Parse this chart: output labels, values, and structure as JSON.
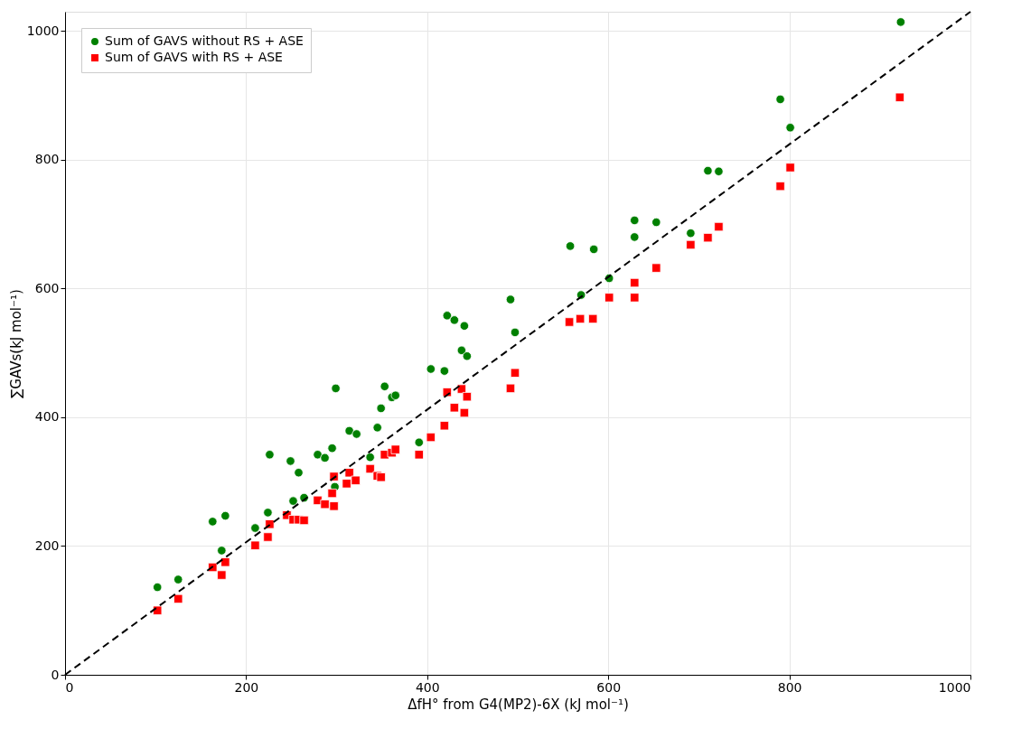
{
  "chart_data": {
    "type": "scatter",
    "xlabel": "ΔfH° from G4(MP2)-6X (kJ mol⁻¹)",
    "ylabel": "∑GAVs(kJ mol⁻¹)",
    "xlim": [
      0,
      1000
    ],
    "ylim": [
      0,
      1030
    ],
    "xticks": [
      0,
      200,
      400,
      600,
      800,
      1000
    ],
    "yticks": [
      0,
      200,
      400,
      600,
      800,
      1000
    ],
    "grid": true,
    "legend": "top left",
    "series": [
      {
        "name": "Sum of GAVS without RS + ASE",
        "color": "#008000",
        "marker": "circle",
        "x": [
          102,
          125,
          163,
          177,
          173,
          210,
          224,
          226,
          249,
          258,
          252,
          264,
          279,
          287,
          295,
          299,
          298,
          314,
          322,
          337,
          345,
          349,
          353,
          361,
          365,
          391,
          404,
          419,
          422,
          430,
          441,
          438,
          444,
          492,
          497,
          558,
          570,
          584,
          601,
          629,
          629,
          653,
          691,
          710,
          722,
          790,
          801,
          923
        ],
        "values": [
          136,
          148,
          238,
          247,
          193,
          228,
          252,
          342,
          332,
          314,
          270,
          275,
          342,
          337,
          352,
          445,
          292,
          379,
          374,
          338,
          384,
          414,
          448,
          431,
          434,
          361,
          475,
          472,
          558,
          551,
          542,
          504,
          495,
          583,
          532,
          666,
          590,
          661,
          616,
          706,
          680,
          703,
          686,
          783,
          782,
          894,
          850,
          1014
        ]
      },
      {
        "name": "Sum of GAVS with RS + ASE",
        "color": "#ff0000",
        "marker": "square",
        "x": [
          102,
          125,
          163,
          173,
          177,
          210,
          224,
          226,
          245,
          252,
          258,
          264,
          279,
          287,
          295,
          297,
          297,
          311,
          314,
          321,
          337,
          345,
          349,
          353,
          361,
          365,
          391,
          404,
          419,
          422,
          430,
          438,
          441,
          444,
          492,
          497,
          557,
          569,
          583,
          601,
          629,
          629,
          653,
          691,
          710,
          722,
          790,
          801,
          922
        ],
        "values": [
          100,
          118,
          167,
          155,
          175,
          201,
          214,
          234,
          248,
          241,
          241,
          240,
          271,
          265,
          282,
          262,
          308,
          297,
          314,
          302,
          320,
          309,
          307,
          342,
          345,
          350,
          342,
          369,
          387,
          439,
          415,
          444,
          407,
          432,
          445,
          469,
          548,
          553,
          553,
          586,
          609,
          586,
          632,
          668,
          679,
          696,
          759,
          788,
          897
        ]
      },
      {
        "type": "line",
        "color": "#000000",
        "line_style": "dashed",
        "x": [
          0,
          1000
        ],
        "values": [
          0,
          1030
        ]
      }
    ]
  }
}
